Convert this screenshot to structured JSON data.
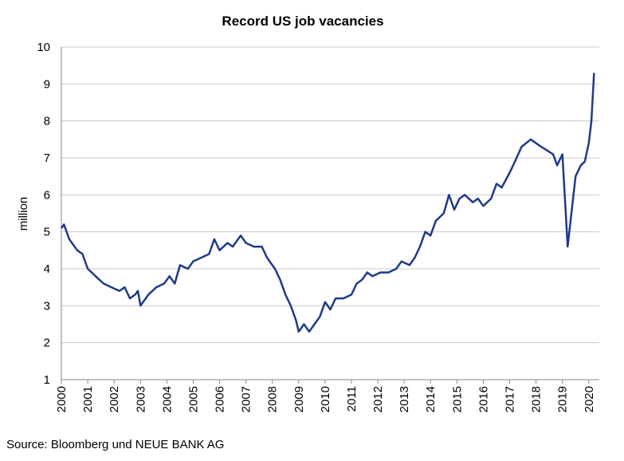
{
  "chart_data": {
    "type": "line",
    "title": "Record US job vacancies",
    "y_label": "million",
    "source": "Source: Bloomberg und NEUE BANK AG",
    "x": [
      2000.0,
      2000.1,
      2000.3,
      2000.6,
      2000.8,
      2001.0,
      2001.3,
      2001.6,
      2001.9,
      2002.2,
      2002.4,
      2002.6,
      2002.8,
      2002.9,
      2003.0,
      2003.3,
      2003.6,
      2003.9,
      2004.1,
      2004.3,
      2004.5,
      2004.8,
      2005.0,
      2005.3,
      2005.6,
      2005.8,
      2006.0,
      2006.3,
      2006.5,
      2006.8,
      2007.0,
      2007.3,
      2007.6,
      2007.8,
      2008.1,
      2008.3,
      2008.5,
      2008.7,
      2008.9,
      2009.0,
      2009.2,
      2009.4,
      2009.6,
      2009.8,
      2010.0,
      2010.2,
      2010.4,
      2010.7,
      2011.0,
      2011.2,
      2011.4,
      2011.6,
      2011.8,
      2012.1,
      2012.4,
      2012.7,
      2012.9,
      2013.2,
      2013.4,
      2013.6,
      2013.8,
      2014.0,
      2014.2,
      2014.5,
      2014.7,
      2014.9,
      2015.1,
      2015.3,
      2015.6,
      2015.8,
      2016.0,
      2016.3,
      2016.5,
      2016.7,
      2017.0,
      2017.2,
      2017.45,
      2017.8,
      2018.2,
      2018.65,
      2018.8,
      2019.0,
      2019.2,
      2019.5,
      2019.7,
      2019.85,
      2020.0,
      2020.1,
      2020.2
    ],
    "values": [
      5.1,
      5.2,
      4.8,
      4.5,
      4.4,
      4.0,
      3.8,
      3.6,
      3.5,
      3.4,
      3.5,
      3.2,
      3.3,
      3.4,
      3.0,
      3.3,
      3.5,
      3.6,
      3.8,
      3.6,
      4.1,
      4.0,
      4.2,
      4.3,
      4.4,
      4.8,
      4.5,
      4.7,
      4.6,
      4.9,
      4.7,
      4.6,
      4.6,
      4.3,
      4.0,
      3.7,
      3.3,
      3.0,
      2.6,
      2.3,
      2.5,
      2.3,
      2.5,
      2.7,
      3.1,
      2.9,
      3.2,
      3.2,
      3.3,
      3.6,
      3.7,
      3.9,
      3.8,
      3.9,
      3.9,
      4.0,
      4.2,
      4.1,
      4.3,
      4.6,
      5.0,
      4.9,
      5.3,
      5.5,
      6.0,
      5.6,
      5.9,
      6.0,
      5.8,
      5.9,
      5.7,
      5.9,
      6.3,
      6.2,
      6.6,
      6.9,
      7.3,
      7.5,
      7.3,
      7.1,
      6.8,
      7.1,
      4.6,
      6.5,
      6.8,
      6.9,
      7.4,
      8.0,
      9.3
    ],
    "color": "#1f3a8a",
    "xlim": [
      2000,
      2020.4
    ],
    "xticks": [
      2000,
      2001,
      2002,
      2003,
      2004,
      2005,
      2006,
      2007,
      2008,
      2009,
      2010,
      2011,
      2012,
      2013,
      2014,
      2015,
      2016,
      2017,
      2018,
      2019,
      2020
    ],
    "ylim": [
      1,
      10
    ],
    "yticks": [
      1,
      2,
      3,
      4,
      5,
      6,
      7,
      8,
      9,
      10
    ],
    "grid": true
  }
}
